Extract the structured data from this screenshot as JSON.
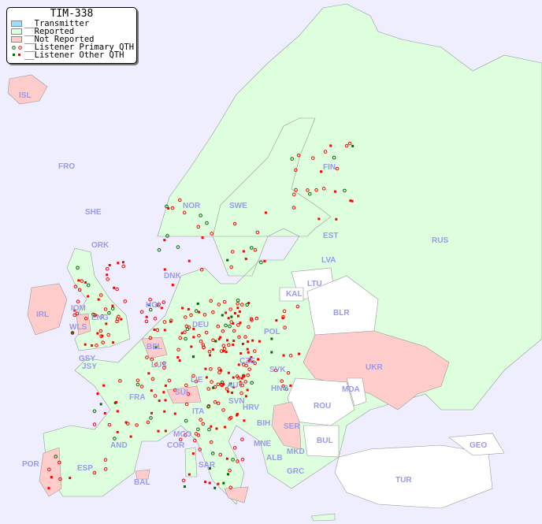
{
  "legend": {
    "title": "TIM-338",
    "items": [
      {
        "label": "__Transmitter",
        "color": "#99ddff"
      },
      {
        "label": "__Reported",
        "color": "#ddffdd"
      },
      {
        "label": "__Not Reported",
        "color": "#ffcccc"
      },
      {
        "label": "__Listener Primary QTH",
        "colors": [
          "#006600",
          "#ff0000"
        ],
        "marker": "circle"
      },
      {
        "label": "__Listener Other QTH",
        "colors": [
          "#006600",
          "#ff0000"
        ],
        "marker": "square"
      }
    ]
  },
  "colors": {
    "sea": "#eeeeff",
    "reported": "#ddffdd",
    "not_reported": "#ffcccc",
    "unreported_white": "#ffffff",
    "label": "#9999ee"
  },
  "countries": [
    "ISL",
    "FRO",
    "SHE",
    "ORK",
    "NOR",
    "SWE",
    "FIN",
    "EST",
    "RUS",
    "LVA",
    "LTU",
    "KAL",
    "BLR",
    "DNK",
    "IRL",
    "IOM",
    "WLS",
    "ENG",
    "GSY",
    "JSY",
    "HOL",
    "BEL",
    "LUX",
    "DEU",
    "POL",
    "CZE",
    "SVK",
    "AUT",
    "HNG",
    "LIE",
    "SUI",
    "FRA",
    "UKR",
    "MDA",
    "ROU",
    "SVN",
    "HRV",
    "BIH",
    "SER",
    "BUL",
    "ITA",
    "MCO",
    "COR",
    "SAR",
    "MNE",
    "ALB",
    "MKD",
    "GRC",
    "TUR",
    "GEO",
    "AND",
    "ESP",
    "POR",
    "BAL"
  ]
}
